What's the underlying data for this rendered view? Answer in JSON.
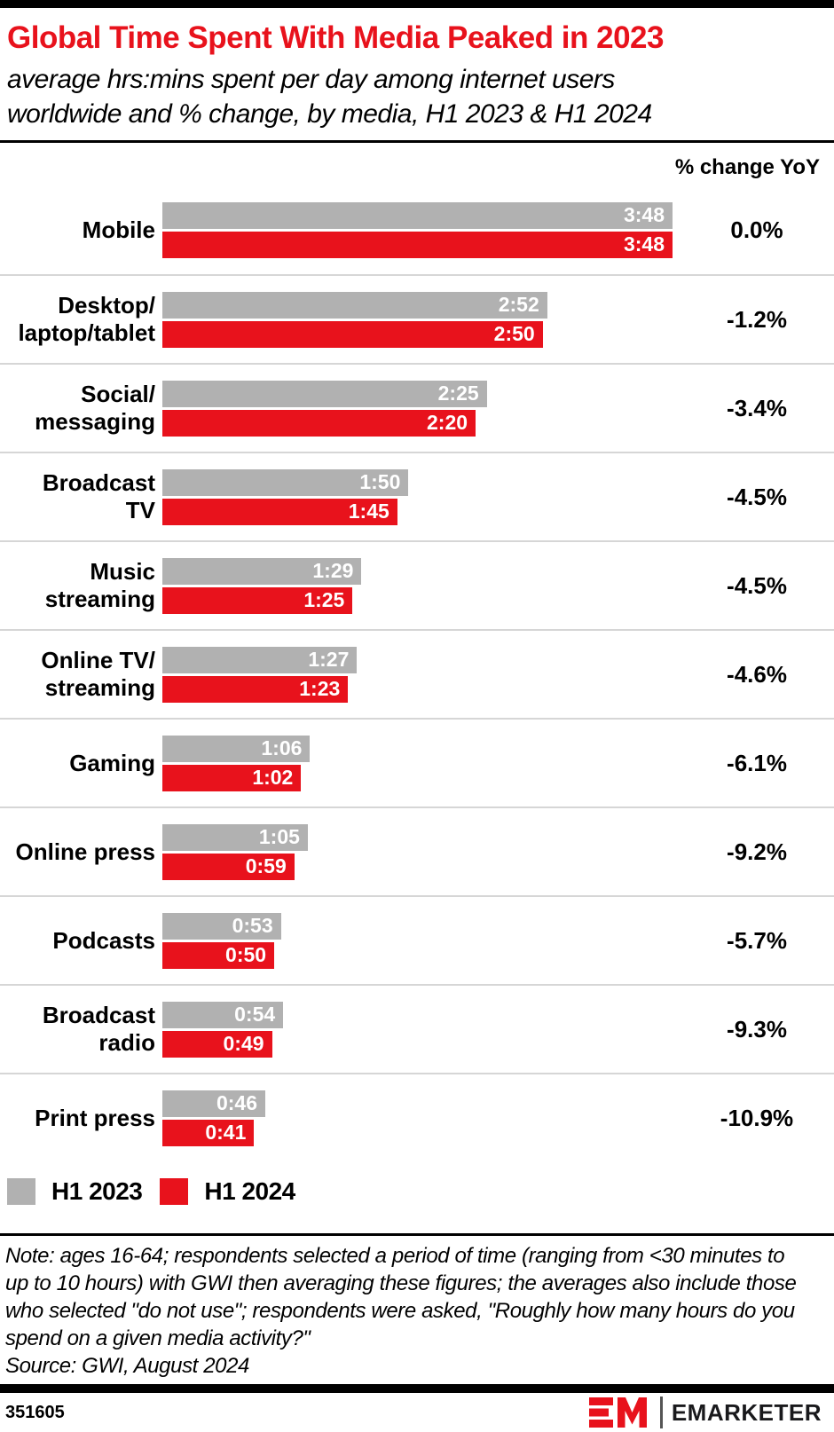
{
  "header": {
    "title": "Global Time Spent With Media Peaked in 2023",
    "subtitle_lines": [
      "average hrs:mins spent per day among internet users",
      "worldwide and % change, by media, H1 2023 & H1 2024"
    ],
    "col_header": "% change YoY"
  },
  "chart_data": {
    "type": "bar",
    "orientation": "horizontal",
    "title": "Global Time Spent With Media Peaked in 2023",
    "subtitle": "average hrs:mins spent per day among internet users worldwide and % change, by media, H1 2023 & H1 2024",
    "unit": "hrs:mins spent per day",
    "max_minutes": 228,
    "xlim_minutes": [
      0,
      228
    ],
    "grid": false,
    "legend_position": "bottom-left",
    "categories": [
      "Mobile",
      "Desktop/laptop/tablet",
      "Social/messaging",
      "Broadcast TV",
      "Music streaming",
      "Online TV/streaming",
      "Gaming",
      "Online press",
      "Podcasts",
      "Broadcast radio",
      "Print press"
    ],
    "category_display_lines": [
      [
        "Mobile"
      ],
      [
        "Desktop/",
        "laptop/tablet"
      ],
      [
        "Social/",
        "messaging"
      ],
      [
        "Broadcast",
        "TV"
      ],
      [
        "Music",
        "streaming"
      ],
      [
        "Online TV/",
        "streaming"
      ],
      [
        "Gaming"
      ],
      [
        "Online press"
      ],
      [
        "Podcasts"
      ],
      [
        "Broadcast",
        "radio"
      ],
      [
        "Print press"
      ]
    ],
    "series": [
      {
        "name": "H1 2023",
        "color": "#b1b1b1",
        "labels": [
          "3:48",
          "2:52",
          "2:25",
          "1:50",
          "1:29",
          "1:27",
          "1:06",
          "1:05",
          "0:53",
          "0:54",
          "0:46"
        ],
        "minutes": [
          228,
          172,
          145,
          110,
          89,
          87,
          66,
          65,
          53,
          54,
          46
        ]
      },
      {
        "name": "H1 2024",
        "color": "#e8121c",
        "labels": [
          "3:48",
          "2:50",
          "2:20",
          "1:45",
          "1:25",
          "1:23",
          "1:02",
          "0:59",
          "0:50",
          "0:49",
          "0:41"
        ],
        "minutes": [
          228,
          170,
          140,
          105,
          85,
          83,
          62,
          59,
          50,
          49,
          41
        ]
      }
    ],
    "pct_change_yoy": [
      "0.0%",
      "-1.2%",
      "-3.4%",
      "-4.5%",
      "-4.5%",
      "-4.6%",
      "-6.1%",
      "-9.2%",
      "-5.7%",
      "-9.3%",
      "-10.9%"
    ]
  },
  "legend": [
    {
      "label": "H1 2023",
      "color": "#b1b1b1"
    },
    {
      "label": "H1 2024",
      "color": "#e8121c"
    }
  ],
  "note_lines": [
    "Note: ages 16-64; respondents selected a period of time (ranging from <30 minutes to",
    "up to 10 hours) with GWI then averaging these figures; the averages also include those",
    "who selected \"do not use\"; respondents were asked, \"Roughly how many hours do you",
    "spend on a given media activity?\""
  ],
  "source": "Source: GWI, August 2024",
  "footer": {
    "chart_id": "351605",
    "brand": "EMARKETER"
  },
  "colors": {
    "accent_red": "#e8121c",
    "bar_gray": "#b1b1b1",
    "divider_gray": "#d6d6d6"
  }
}
